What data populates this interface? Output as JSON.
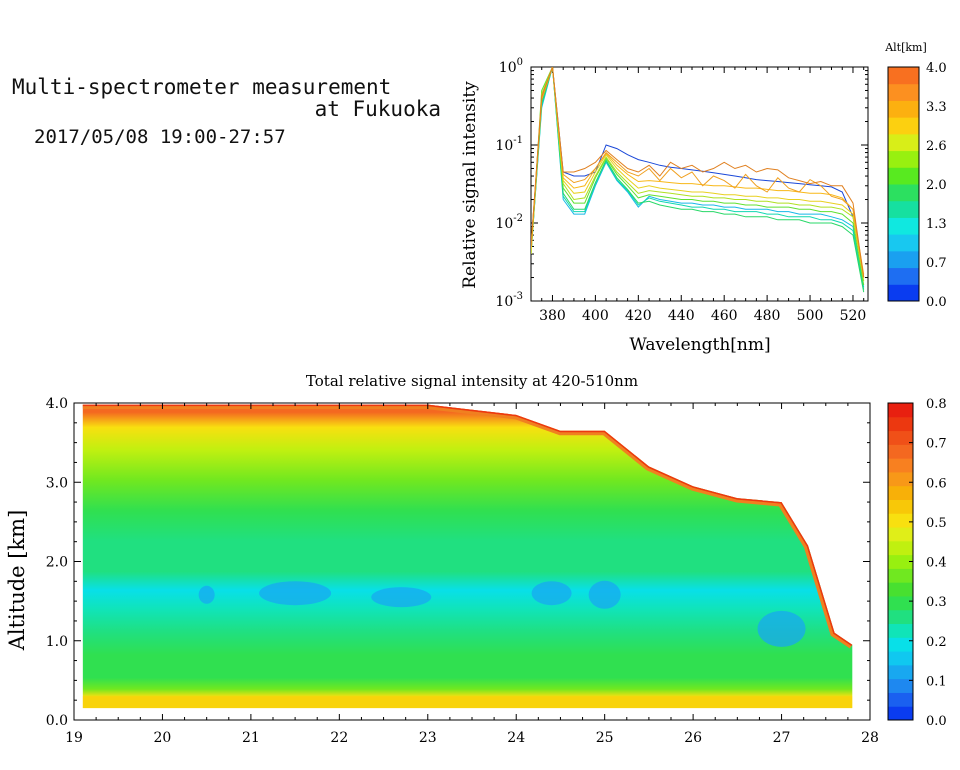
{
  "header": {
    "title_line1": "Multi-spectrometer measurement",
    "title_line2": "at Fukuoka",
    "timestamp": "2017/05/08 19:00-27:57"
  },
  "chart_data": [
    {
      "type": "line",
      "xlabel": "Wavelength[nm]",
      "ylabel": "Relative signal intensity",
      "xlim": [
        370,
        527
      ],
      "ylim": [
        0.001,
        1
      ],
      "y_scale": "log",
      "x_ticks": [
        "380",
        "400",
        "420",
        "440",
        "460",
        "480",
        "500",
        "520"
      ],
      "y_ticks": [
        "10",
        "10",
        "10",
        "10"
      ],
      "y_tick_exponents": [
        "0",
        "-1",
        "-2",
        "-3"
      ],
      "colorbar": {
        "title": "Alt[km]",
        "ticks": [
          "4.0",
          "3.3",
          "2.6",
          "2.0",
          "1.3",
          "0.7",
          "0.0"
        ],
        "colors": [
          "#0a3cf0",
          "#1e6ef2",
          "#1aa0f0",
          "#18c8f0",
          "#10e8e0",
          "#16e0a0",
          "#2ce060",
          "#58ea20",
          "#98f010",
          "#d8ee18",
          "#fcd010",
          "#fcb010",
          "#fc9020",
          "#f87020"
        ]
      },
      "x": [
        370,
        375,
        380,
        385,
        390,
        395,
        400,
        405,
        410,
        415,
        420,
        425,
        430,
        435,
        440,
        445,
        450,
        455,
        460,
        465,
        470,
        475,
        480,
        485,
        490,
        495,
        500,
        505,
        510,
        515,
        520,
        525
      ],
      "series": [
        {
          "color": "#1a48d8",
          "values": [
            0.005,
            0.35,
            1.0,
            0.045,
            0.04,
            0.04,
            0.045,
            0.1,
            0.09,
            0.075,
            0.065,
            0.06,
            0.055,
            0.052,
            0.05,
            0.048,
            0.046,
            0.044,
            0.042,
            0.04,
            0.038,
            0.036,
            0.035,
            0.034,
            0.033,
            0.032,
            0.031,
            0.03,
            0.029,
            0.025,
            0.012,
            0.002
          ]
        },
        {
          "color": "#18b8e8",
          "values": [
            0.004,
            0.3,
            1.0,
            0.02,
            0.013,
            0.013,
            0.03,
            0.06,
            0.035,
            0.025,
            0.016,
            0.022,
            0.02,
            0.019,
            0.018,
            0.018,
            0.017,
            0.017,
            0.016,
            0.016,
            0.015,
            0.015,
            0.015,
            0.014,
            0.014,
            0.013,
            0.013,
            0.013,
            0.012,
            0.011,
            0.009,
            0.0015
          ]
        },
        {
          "color": "#10d8b0",
          "values": [
            0.004,
            0.32,
            1.0,
            0.022,
            0.014,
            0.014,
            0.032,
            0.062,
            0.036,
            0.026,
            0.017,
            0.021,
            0.019,
            0.018,
            0.017,
            0.016,
            0.016,
            0.015,
            0.015,
            0.014,
            0.014,
            0.014,
            0.013,
            0.013,
            0.012,
            0.012,
            0.012,
            0.011,
            0.011,
            0.01,
            0.008,
            0.0014
          ]
        },
        {
          "color": "#28d868",
          "values": [
            0.004,
            0.34,
            1.0,
            0.024,
            0.015,
            0.015,
            0.033,
            0.064,
            0.038,
            0.027,
            0.018,
            0.019,
            0.017,
            0.016,
            0.015,
            0.015,
            0.014,
            0.014,
            0.013,
            0.013,
            0.012,
            0.012,
            0.012,
            0.011,
            0.011,
            0.011,
            0.01,
            0.01,
            0.01,
            0.009,
            0.007,
            0.0013
          ]
        },
        {
          "color": "#60e030",
          "values": [
            0.004,
            0.5,
            1.0,
            0.028,
            0.018,
            0.018,
            0.038,
            0.068,
            0.042,
            0.03,
            0.021,
            0.023,
            0.022,
            0.021,
            0.02,
            0.02,
            0.019,
            0.019,
            0.018,
            0.018,
            0.017,
            0.017,
            0.016,
            0.016,
            0.016,
            0.015,
            0.015,
            0.014,
            0.014,
            0.013,
            0.01,
            0.0016
          ]
        },
        {
          "color": "#b0e020",
          "values": [
            0.004,
            0.45,
            1.0,
            0.032,
            0.02,
            0.021,
            0.04,
            0.07,
            0.045,
            0.033,
            0.024,
            0.026,
            0.025,
            0.024,
            0.023,
            0.022,
            0.022,
            0.021,
            0.021,
            0.02,
            0.02,
            0.019,
            0.019,
            0.018,
            0.018,
            0.017,
            0.017,
            0.016,
            0.016,
            0.015,
            0.012,
            0.0018
          ]
        },
        {
          "color": "#e8d020",
          "values": [
            0.004,
            0.4,
            1.0,
            0.035,
            0.024,
            0.025,
            0.045,
            0.075,
            0.05,
            0.037,
            0.028,
            0.03,
            0.028,
            0.027,
            0.026,
            0.025,
            0.025,
            0.024,
            0.023,
            0.023,
            0.022,
            0.022,
            0.021,
            0.021,
            0.02,
            0.02,
            0.019,
            0.019,
            0.018,
            0.017,
            0.013,
            0.002
          ]
        },
        {
          "color": "#f8b818",
          "values": [
            0.005,
            0.38,
            1.0,
            0.038,
            0.028,
            0.03,
            0.05,
            0.078,
            0.055,
            0.042,
            0.034,
            0.035,
            0.034,
            0.033,
            0.032,
            0.032,
            0.031,
            0.03,
            0.03,
            0.029,
            0.028,
            0.028,
            0.027,
            0.026,
            0.026,
            0.025,
            0.024,
            0.024,
            0.023,
            0.021,
            0.015,
            0.0022
          ]
        },
        {
          "color": "#f0a020",
          "values": [
            0.005,
            0.4,
            1.0,
            0.042,
            0.033,
            0.036,
            0.05,
            0.08,
            0.06,
            0.045,
            0.04,
            0.05,
            0.035,
            0.05,
            0.038,
            0.045,
            0.03,
            0.04,
            0.035,
            0.028,
            0.042,
            0.03,
            0.025,
            0.038,
            0.028,
            0.025,
            0.036,
            0.03,
            0.022,
            0.02,
            0.015,
            0.002
          ]
        },
        {
          "color": "#e08020",
          "values": [
            0.005,
            0.42,
            1.0,
            0.045,
            0.045,
            0.05,
            0.06,
            0.085,
            0.065,
            0.05,
            0.045,
            0.055,
            0.04,
            0.06,
            0.05,
            0.055,
            0.045,
            0.05,
            0.06,
            0.05,
            0.055,
            0.045,
            0.05,
            0.048,
            0.038,
            0.035,
            0.032,
            0.034,
            0.03,
            0.03,
            0.018,
            0.002
          ]
        }
      ]
    },
    {
      "type": "heatmap",
      "title": "Total relative signal intensity at 420-510nm",
      "ylabel": "Altitude [km]",
      "xlim": [
        19,
        28
      ],
      "ylim": [
        0,
        4
      ],
      "x_ticks": [
        "19",
        "20",
        "21",
        "22",
        "23",
        "24",
        "25",
        "26",
        "27",
        "28"
      ],
      "y_ticks": [
        "0.0",
        "1.0",
        "2.0",
        "3.0",
        "4.0"
      ],
      "colorbar": {
        "ticks": [
          "0.8",
          "0.7",
          "0.6",
          "0.5",
          "0.4",
          "0.3",
          "0.2",
          "0.1",
          "0.0"
        ],
        "colors": [
          "#0a3cf0",
          "#1a60f0",
          "#1e88f0",
          "#18a8f0",
          "#10c8f0",
          "#08e0e8",
          "#10e4b8",
          "#20e080",
          "#30e050",
          "#48e030",
          "#70e820",
          "#98f010",
          "#c0f010",
          "#e0ee18",
          "#f8e010",
          "#f8c808",
          "#f8b008",
          "#f89818",
          "#f88020",
          "#f46820",
          "#f05018",
          "#ec3810",
          "#e82010"
        ]
      },
      "rows_y_centers": [
        0.2,
        0.3,
        0.5,
        0.8,
        1.2,
        1.5,
        1.8,
        2.2,
        2.6,
        3.0,
        3.3,
        3.6,
        3.9
      ],
      "profile_columns": [
        {
          "x": 19.1,
          "top": 3.98
        },
        {
          "x": 20.0,
          "top": 3.98
        },
        {
          "x": 21.0,
          "top": 3.98
        },
        {
          "x": 22.0,
          "top": 3.98
        },
        {
          "x": 23.0,
          "top": 3.98
        },
        {
          "x": 24.0,
          "top": 3.85
        },
        {
          "x": 24.5,
          "top": 3.65
        },
        {
          "x": 25.0,
          "top": 3.65
        },
        {
          "x": 25.5,
          "top": 3.2
        },
        {
          "x": 26.0,
          "top": 2.95
        },
        {
          "x": 26.5,
          "top": 2.8
        },
        {
          "x": 27.0,
          "top": 2.75
        },
        {
          "x": 27.3,
          "top": 2.2
        },
        {
          "x": 27.6,
          "top": 1.1
        },
        {
          "x": 27.8,
          "top": 0.95
        }
      ],
      "vertical_profile": [
        {
          "alt": 0.15,
          "value": 0.52
        },
        {
          "alt": 0.25,
          "value": 0.38
        },
        {
          "alt": 0.4,
          "value": 0.3
        },
        {
          "alt": 0.7,
          "value": 0.29
        },
        {
          "alt": 1.0,
          "value": 0.25
        },
        {
          "alt": 1.3,
          "value": 0.22
        },
        {
          "alt": 1.55,
          "value": 0.19
        },
        {
          "alt": 1.8,
          "value": 0.24
        },
        {
          "alt": 2.2,
          "value": 0.27
        },
        {
          "alt": 2.6,
          "value": 0.3
        },
        {
          "alt": 3.0,
          "value": 0.36
        },
        {
          "alt": 3.4,
          "value": 0.42
        },
        {
          "alt": 3.7,
          "value": 0.52
        },
        {
          "alt": 3.9,
          "value": 0.7
        }
      ]
    }
  ]
}
